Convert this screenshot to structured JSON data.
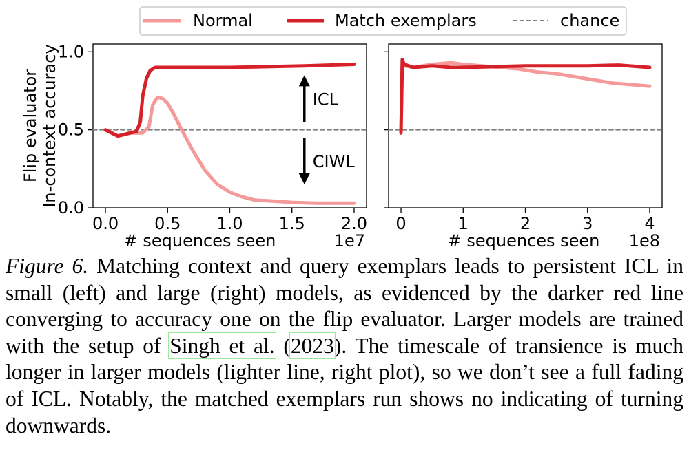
{
  "legend": {
    "items": [
      {
        "label": "Normal",
        "color": "#f49a9a",
        "style": "solid"
      },
      {
        "label": "Match exemplars",
        "color": "#d62128",
        "style": "solid"
      },
      {
        "label": "chance",
        "color": "#808080",
        "style": "dashed"
      }
    ]
  },
  "colors": {
    "normal": "#f49a9a",
    "match": "#d62128",
    "chance": "#808080",
    "citation_box": "#9be89b"
  },
  "chart_data": [
    {
      "type": "line",
      "ylabel": [
        "Flip evaluator",
        "In-context accuracy"
      ],
      "xlabel": "# sequences seen",
      "x_offset_label": "1e7",
      "xlim": [
        -0.1,
        2.1
      ],
      "ylim": [
        0.0,
        1.05
      ],
      "x_ticks": [
        0.0,
        0.5,
        1.0,
        1.5,
        2.0
      ],
      "x_tick_labels": [
        "0.0",
        "0.5",
        "1.0",
        "1.5",
        "2.0"
      ],
      "y_ticks": [
        0.0,
        0.5,
        1.0
      ],
      "y_tick_labels": [
        "0.0",
        "0.5",
        "1.0"
      ],
      "grid": false,
      "annotations": [
        {
          "text": "ICL",
          "arrow": "up",
          "x": 1.6,
          "y_from": 0.55,
          "y_to": 0.85
        },
        {
          "text": "CIWL",
          "arrow": "down",
          "x": 1.6,
          "y_from": 0.45,
          "y_to": 0.15
        }
      ],
      "series": [
        {
          "name": "Normal",
          "x": [
            0.0,
            0.05,
            0.1,
            0.15,
            0.2,
            0.25,
            0.3,
            0.35,
            0.38,
            0.42,
            0.46,
            0.5,
            0.55,
            0.6,
            0.7,
            0.8,
            0.9,
            1.0,
            1.1,
            1.2,
            1.3,
            1.4,
            1.5,
            1.6,
            1.7,
            1.8,
            1.9,
            2.0
          ],
          "y": [
            0.5,
            0.48,
            0.46,
            0.47,
            0.48,
            0.48,
            0.48,
            0.52,
            0.66,
            0.71,
            0.7,
            0.67,
            0.6,
            0.52,
            0.37,
            0.24,
            0.15,
            0.1,
            0.07,
            0.05,
            0.045,
            0.04,
            0.035,
            0.032,
            0.03,
            0.03,
            0.03,
            0.03
          ]
        },
        {
          "name": "Match exemplars",
          "x": [
            0.0,
            0.05,
            0.1,
            0.15,
            0.2,
            0.25,
            0.28,
            0.3,
            0.33,
            0.36,
            0.4,
            0.5,
            0.7,
            1.0,
            1.3,
            1.6,
            1.8,
            2.0
          ],
          "y": [
            0.5,
            0.48,
            0.46,
            0.47,
            0.48,
            0.49,
            0.55,
            0.72,
            0.83,
            0.88,
            0.9,
            0.9,
            0.9,
            0.9,
            0.905,
            0.91,
            0.915,
            0.92
          ]
        },
        {
          "name": "chance",
          "x": [
            -0.1,
            2.1
          ],
          "y": [
            0.5,
            0.5
          ]
        }
      ]
    },
    {
      "type": "line",
      "xlabel": "# sequences seen",
      "x_offset_label": "1e8",
      "xlim": [
        -0.2,
        4.2
      ],
      "ylim": [
        0.0,
        1.05
      ],
      "x_ticks": [
        0,
        1,
        2,
        3,
        4
      ],
      "x_tick_labels": [
        "0",
        "1",
        "2",
        "3",
        "4"
      ],
      "y_ticks": [
        0.0,
        0.5,
        1.0
      ],
      "y_tick_labels": [],
      "grid": false,
      "series": [
        {
          "name": "Normal",
          "x": [
            0.0,
            0.02,
            0.05,
            0.2,
            0.5,
            0.8,
            1.0,
            1.3,
            1.6,
            1.9,
            2.2,
            2.5,
            2.8,
            3.1,
            3.4,
            3.7,
            4.0
          ],
          "y": [
            0.48,
            0.93,
            0.91,
            0.9,
            0.92,
            0.93,
            0.92,
            0.91,
            0.9,
            0.89,
            0.87,
            0.86,
            0.84,
            0.82,
            0.8,
            0.79,
            0.78
          ]
        },
        {
          "name": "Match exemplars",
          "x": [
            0.0,
            0.02,
            0.05,
            0.2,
            0.5,
            0.8,
            1.0,
            1.5,
            2.0,
            2.5,
            3.0,
            3.5,
            4.0
          ],
          "y": [
            0.48,
            0.95,
            0.92,
            0.9,
            0.91,
            0.9,
            0.9,
            0.905,
            0.91,
            0.91,
            0.91,
            0.915,
            0.9
          ]
        },
        {
          "name": "chance",
          "x": [
            -0.2,
            4.2
          ],
          "y": [
            0.5,
            0.5
          ]
        }
      ]
    }
  ],
  "caption": {
    "label": "Figure 6.",
    "text_1": " Matching context and query exemplars leads to persistent ICL in small (left) and large (right) models, as evidenced by the darker red line converging to accuracy one on the flip evaluator. Larger models are trained with the setup of ",
    "cite_authors": "Singh et al.",
    "cite_open": " (",
    "cite_year": "2023",
    "cite_close": ")",
    "text_2": ". The timescale of transience is much longer in larger models (lighter line, right plot), so we don’t see a full fading of ICL. Notably, the matched exemplars run shows no indicating of turning downwards."
  }
}
